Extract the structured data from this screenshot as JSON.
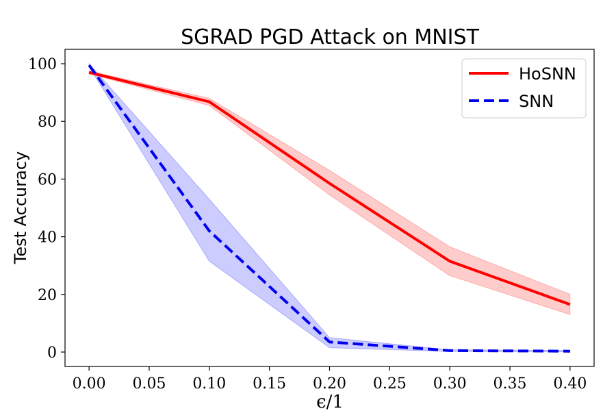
{
  "chart_data": {
    "type": "line",
    "title": "SGRAD PGD Attack on MNIST",
    "xlabel": "ϵ/1",
    "ylabel": "Test Accuracy",
    "xlim": [
      -0.02,
      0.42
    ],
    "ylim": [
      -5,
      105
    ],
    "xticks": [
      0.0,
      0.05,
      0.1,
      0.15,
      0.2,
      0.25,
      0.3,
      0.35,
      0.4
    ],
    "xtick_labels": [
      "0.00",
      "0.05",
      "0.10",
      "0.15",
      "0.20",
      "0.25",
      "0.30",
      "0.35",
      "0.40"
    ],
    "yticks": [
      0,
      20,
      40,
      60,
      80,
      100
    ],
    "ytick_labels": [
      "0",
      "20",
      "40",
      "60",
      "80",
      "100"
    ],
    "legend_position": "top-right",
    "x": [
      0.0,
      0.1,
      0.2,
      0.3,
      0.4
    ],
    "series": [
      {
        "name": "HoSNN",
        "color": "#ff0000",
        "band_color": "#ff0000",
        "linestyle": "solid",
        "values": [
          97,
          86.8,
          58.5,
          31.5,
          16.5
        ],
        "lower": [
          96.5,
          85.5,
          54.5,
          26.5,
          13.0
        ],
        "upper": [
          97.5,
          88.0,
          63.0,
          36.5,
          20.0
        ]
      },
      {
        "name": "SNN",
        "color": "#0000ee",
        "band_color": "#0000ff",
        "linestyle": "dashed",
        "values": [
          99.5,
          42.0,
          3.5,
          0.5,
          0.3
        ],
        "lower": [
          99.0,
          31.5,
          1.5,
          0.2,
          0.1
        ],
        "upper": [
          100.0,
          53.0,
          5.0,
          0.8,
          0.5
        ]
      }
    ]
  }
}
